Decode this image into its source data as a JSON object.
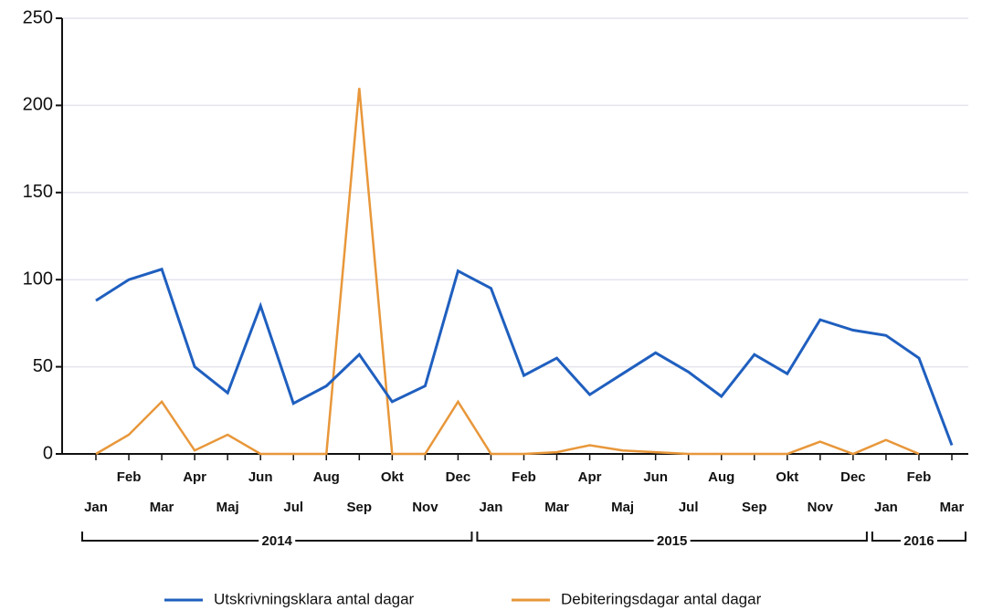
{
  "chart_data": {
    "type": "line",
    "categories": [
      "Jan",
      "Feb",
      "Mar",
      "Apr",
      "Maj",
      "Jun",
      "Jul",
      "Aug",
      "Sep",
      "Okt",
      "Nov",
      "Dec",
      "Jan",
      "Feb",
      "Mar",
      "Apr",
      "Maj",
      "Jun",
      "Jul",
      "Aug",
      "Sep",
      "Okt",
      "Nov",
      "Dec",
      "Jan",
      "Feb",
      "Mar"
    ],
    "year_groups": [
      {
        "label": "2014",
        "size": 12
      },
      {
        "label": "2015",
        "size": 12
      },
      {
        "label": "2016",
        "size": 3
      }
    ],
    "series": [
      {
        "name": "Utskrivningsklara antal dagar",
        "color": "#1f5fbf",
        "values": [
          88,
          100,
          106,
          50,
          35,
          85,
          29,
          39,
          57,
          30,
          39,
          105,
          95,
          45,
          55,
          34,
          46,
          58,
          47,
          33,
          57,
          46,
          77,
          71,
          68,
          55,
          5
        ]
      },
      {
        "name": "Debiteringsdagar antal dagar",
        "color": "#e8973a",
        "values": [
          0,
          11,
          30,
          2,
          11,
          0,
          0,
          0,
          210,
          0,
          0,
          30,
          0,
          0,
          1,
          5,
          2,
          1,
          0,
          0,
          0,
          0,
          7,
          0,
          8,
          0,
          null
        ]
      }
    ],
    "ylim": [
      0,
      250
    ],
    "yticks": [
      0,
      50,
      100,
      150,
      200,
      250
    ],
    "grid": true,
    "legend": "bottom"
  }
}
